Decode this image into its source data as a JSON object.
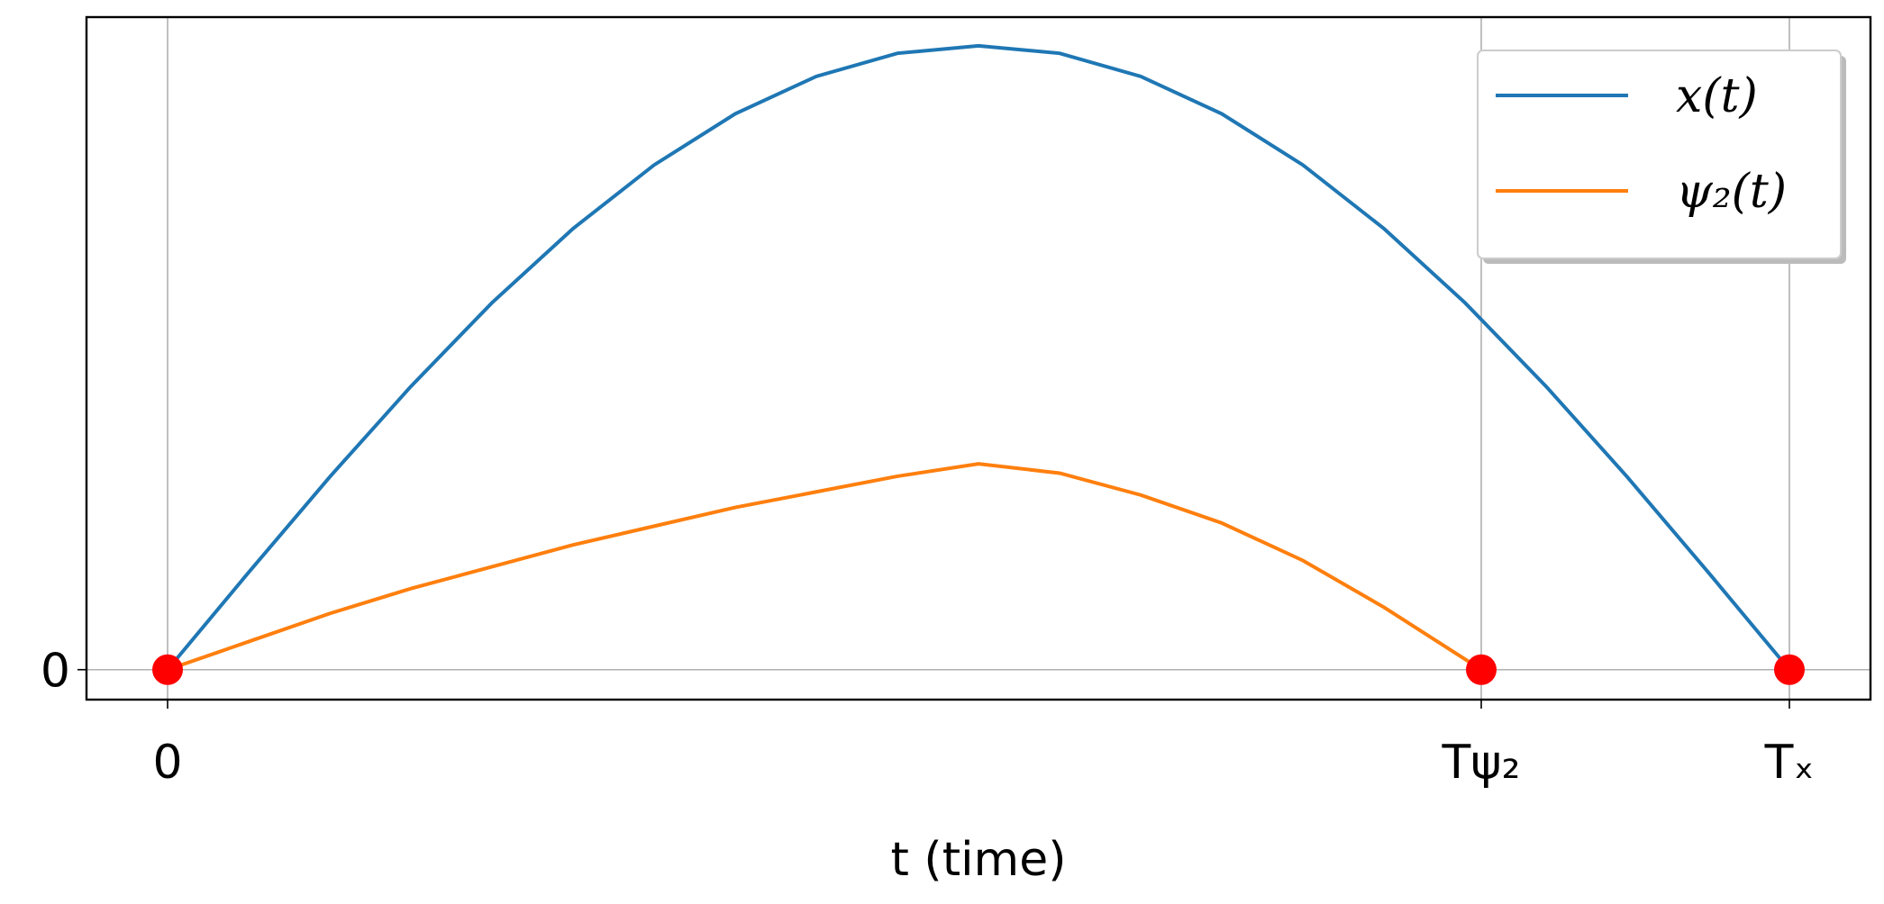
{
  "chart_data": {
    "type": "line",
    "xlabel": "t (time)",
    "xlim": [
      -0.05,
      1.05
    ],
    "ylim": [
      -0.048,
      1.046
    ],
    "xticks": [
      0,
      {
        "value": 0.81,
        "label": "Tψ₂"
      },
      {
        "value": 1,
        "label": "Tₓ"
      }
    ],
    "yticks": [
      0
    ],
    "grid": true,
    "legend": "upper right",
    "series": [
      {
        "name": "x(t)",
        "color": "#1f77b4",
        "x": [
          0,
          0.05,
          0.1,
          0.15,
          0.2,
          0.25,
          0.3,
          0.35,
          0.4,
          0.45,
          0.5,
          0.55,
          0.6,
          0.65,
          0.7,
          0.75,
          0.8,
          0.85,
          0.9,
          0.95,
          1
        ],
        "values": [
          0,
          0.156,
          0.309,
          0.454,
          0.588,
          0.707,
          0.809,
          0.891,
          0.951,
          0.988,
          1,
          0.988,
          0.951,
          0.891,
          0.809,
          0.707,
          0.588,
          0.454,
          0.309,
          0.156,
          0
        ]
      },
      {
        "name": "ψ₂(t)",
        "color": "#ff7f0e",
        "x": [
          0,
          0.05,
          0.1,
          0.15,
          0.2,
          0.25,
          0.3,
          0.35,
          0.4,
          0.45,
          0.5,
          0.55,
          0.6,
          0.65,
          0.7,
          0.75,
          0.81
        ],
        "values": [
          0,
          0.045,
          0.09,
          0.13,
          0.165,
          0.2,
          0.23,
          0.26,
          0.285,
          0.31,
          0.33,
          0.315,
          0.28,
          0.235,
          0.175,
          0.1,
          0
        ]
      }
    ],
    "markers": {
      "color": "#ff0000",
      "x": [
        0,
        0.81,
        1
      ],
      "values": [
        0,
        0,
        0
      ]
    }
  }
}
